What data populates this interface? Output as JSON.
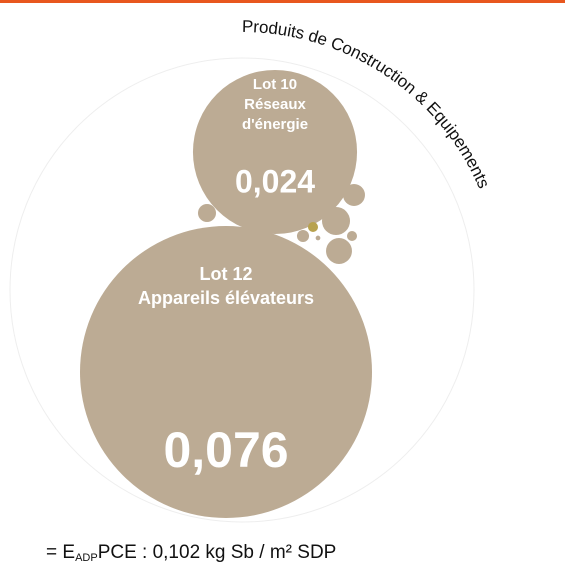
{
  "chart_data": {
    "type": "bubble",
    "title": "Produits de Construction & Equipements",
    "categories": [
      [
        "Lot 12",
        "Appareils élévateurs"
      ],
      [
        "Lot 10",
        "Réseaux",
        "d'énergie"
      ],
      null,
      null,
      null,
      null,
      null,
      null,
      null,
      null
    ],
    "values": [
      0.076,
      0.024,
      0.0007,
      0.0006,
      0.00043,
      0.00029,
      0.00013,
      9e-05,
      9e-05,
      2e-05
    ],
    "value_labels": [
      "0,076",
      "0,024",
      null,
      null,
      null,
      null,
      null,
      null,
      null,
      null
    ],
    "colors": [
      "#bcab94",
      "#bcab94",
      "#bcab94",
      "#bcab94",
      "#bcab94",
      "#bcab94",
      "#bcab94",
      "#b8a24e",
      "#bcab94",
      "#bcab94"
    ],
    "footer": {
      "prefix": "= E",
      "subscript": "ADP",
      "suffix": "PCE :  0,102 kg Sb / m² SDP"
    }
  }
}
